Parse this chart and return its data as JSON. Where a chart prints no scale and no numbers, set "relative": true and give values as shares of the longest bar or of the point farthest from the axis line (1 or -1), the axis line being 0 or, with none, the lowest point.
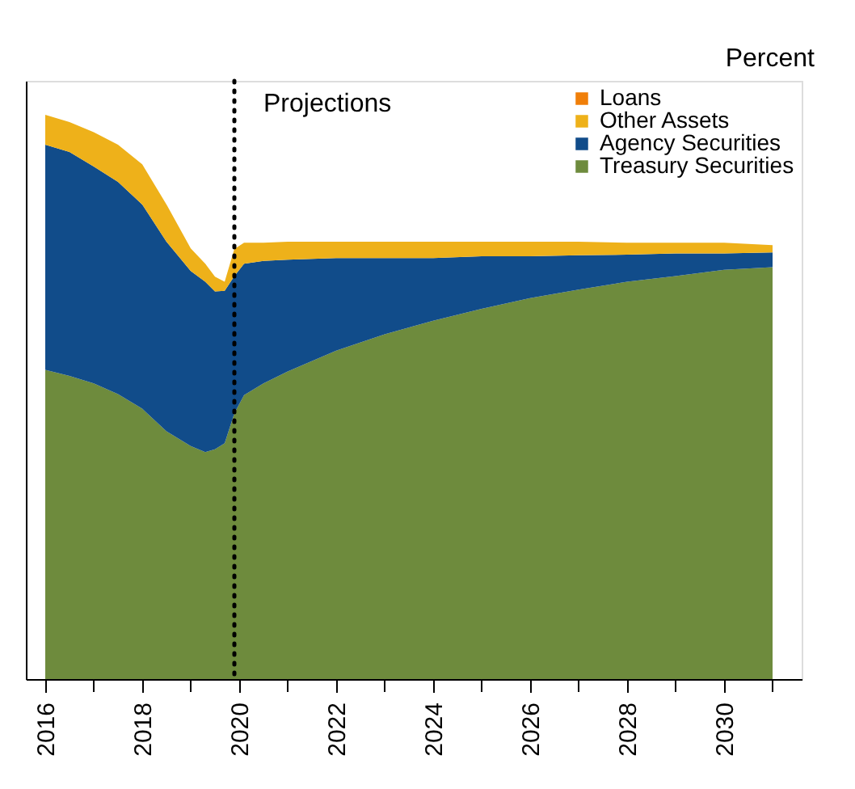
{
  "chart_data": {
    "type": "area",
    "stacked": true,
    "relative": true,
    "ylabel": "Percent",
    "x": [
      2016,
      2016.5,
      2017,
      2017.5,
      2018,
      2018.5,
      2019,
      2019.3,
      2019.5,
      2019.7,
      2019.9,
      2020.1,
      2020.5,
      2021,
      2022,
      2023,
      2024,
      2025,
      2026,
      2027,
      2028,
      2029,
      2030,
      2031
    ],
    "xlim": [
      2015.6,
      2031.6
    ],
    "xticks": [
      2016,
      {
        "value": 2017,
        "label": null
      },
      2018,
      {
        "value": 2019,
        "label": null
      },
      2020,
      {
        "value": 2021,
        "label": null
      },
      2022,
      {
        "value": 2023,
        "label": null
      },
      2024,
      {
        "value": 2025,
        "label": null
      },
      2026,
      {
        "value": 2027,
        "label": null
      },
      2028,
      {
        "value": 2029,
        "label": null
      },
      2030,
      {
        "value": 2031,
        "label": null
      }
    ],
    "series": [
      {
        "name": "Treasury Securities",
        "color": "#6e8b3d",
        "values": [
          0.548,
          0.537,
          0.524,
          0.505,
          0.479,
          0.439,
          0.413,
          0.402,
          0.407,
          0.418,
          0.471,
          0.503,
          0.524,
          0.545,
          0.582,
          0.611,
          0.635,
          0.656,
          0.675,
          0.69,
          0.704,
          0.714,
          0.725,
          0.73
        ]
      },
      {
        "name": "Agency Securities",
        "color": "#114c8a",
        "values": [
          0.399,
          0.397,
          0.384,
          0.376,
          0.362,
          0.336,
          0.31,
          0.302,
          0.28,
          0.27,
          0.243,
          0.233,
          0.217,
          0.198,
          0.164,
          0.135,
          0.111,
          0.093,
          0.074,
          0.061,
          0.048,
          0.04,
          0.029,
          0.026
        ]
      },
      {
        "name": "Other Assets",
        "color": "#eeb11a",
        "values": [
          0.053,
          0.053,
          0.061,
          0.066,
          0.071,
          0.066,
          0.04,
          0.032,
          0.026,
          0.016,
          0.048,
          0.037,
          0.032,
          0.032,
          0.029,
          0.029,
          0.029,
          0.026,
          0.026,
          0.024,
          0.021,
          0.019,
          0.019,
          0.013
        ]
      },
      {
        "name": "Loans",
        "color": "#f07f09",
        "values": [
          null,
          null,
          null,
          null,
          null,
          null,
          null,
          null,
          null,
          null,
          null,
          null,
          null,
          null,
          null,
          null,
          null,
          null,
          null,
          null,
          null,
          null,
          null,
          null
        ]
      }
    ],
    "ref_lines": [
      {
        "axis": "x",
        "value": 2019.9,
        "label": "Projections",
        "color": "#000000",
        "line_style": "dotted"
      }
    ],
    "legend": "top right",
    "grid": false
  }
}
